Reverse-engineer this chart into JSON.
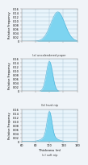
{
  "titles": [
    "(a) uncalendered paper",
    "(b) hard nip",
    "(c) soft nip"
  ],
  "xlabel": "Thickness (m)",
  "ylabel": "Relative Frequency",
  "xlim": [
    60,
    140
  ],
  "xticks": [
    60,
    80,
    100,
    120,
    140
  ],
  "xticklabels": [
    "60",
    "80",
    "100",
    "120",
    "140"
  ],
  "ylim": [
    0,
    0.16
  ],
  "yticks": [
    0.0,
    0.02,
    0.04,
    0.06,
    0.08,
    0.1,
    0.12,
    0.14,
    0.16
  ],
  "yticklabels": [
    "0",
    "0.02",
    "0.04",
    "0.06",
    "0.08",
    "0.10",
    "0.12",
    "0.14",
    "0.16"
  ],
  "bar_color": "#7dd4f0",
  "bar_edge_color": "#4ab0d8",
  "panel_means": [
    112,
    100,
    100
  ],
  "panel_stds": [
    10,
    4.5,
    3.5
  ],
  "panel3_wide_std": 9,
  "panel3_wide_weight": 0.35,
  "panel3_narrow_weight": 0.65,
  "bg_color": "#f0f4f8",
  "plot_bg": "#e8f4fb",
  "grid_color": "#b0c8d8",
  "spine_color": "#888888"
}
